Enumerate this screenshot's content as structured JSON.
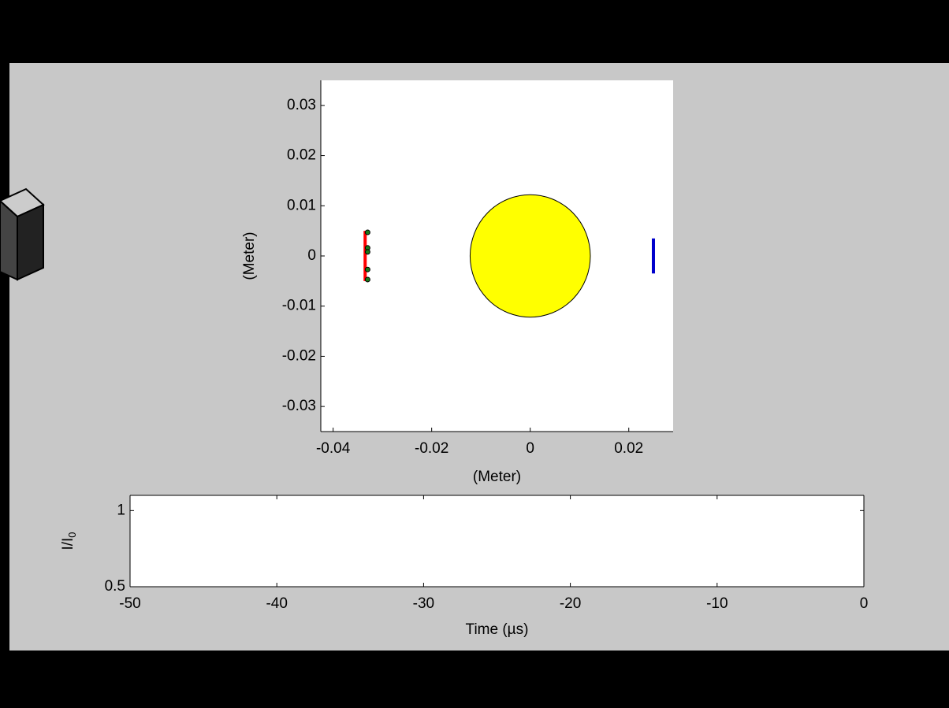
{
  "chart_data": [
    {
      "type": "scatter",
      "xlabel": "(Meter)",
      "ylabel": "(Meter)",
      "xlim": [
        -0.0425,
        0.029
      ],
      "ylim": [
        -0.035,
        0.035
      ],
      "xticks": [
        -0.04,
        -0.02,
        0,
        0.02
      ],
      "yticks": [
        -0.03,
        -0.02,
        -0.01,
        0,
        0.01,
        0.02,
        0.03
      ],
      "circle": {
        "x": 0,
        "y": 0,
        "radius": 0.0122,
        "color": "#ffff00"
      },
      "lines": [
        {
          "x": [
            -0.0335,
            -0.0335
          ],
          "y": [
            -0.005,
            0.005
          ],
          "color": "#ff0000"
        },
        {
          "x": [
            0.025,
            0.025
          ],
          "y": [
            -0.0035,
            0.0035
          ],
          "color": "#0000cc"
        }
      ],
      "series": [
        {
          "x": [
            -0.033,
            -0.033,
            -0.033,
            -0.033,
            -0.033
          ],
          "y": [
            0.0047,
            0.0016,
            0.0008,
            -0.0027,
            -0.0047
          ],
          "color": "#1a7a1a"
        }
      ]
    },
    {
      "type": "line",
      "xlabel": "Time (µs)",
      "ylabel": "I/I",
      "ylabel_subscript": "0",
      "xlim": [
        -50,
        0
      ],
      "ylim": [
        0.5,
        1.1
      ],
      "xticks": [
        -50,
        -40,
        -30,
        -20,
        -10,
        0
      ],
      "yticks": [
        0.5,
        1
      ]
    }
  ]
}
